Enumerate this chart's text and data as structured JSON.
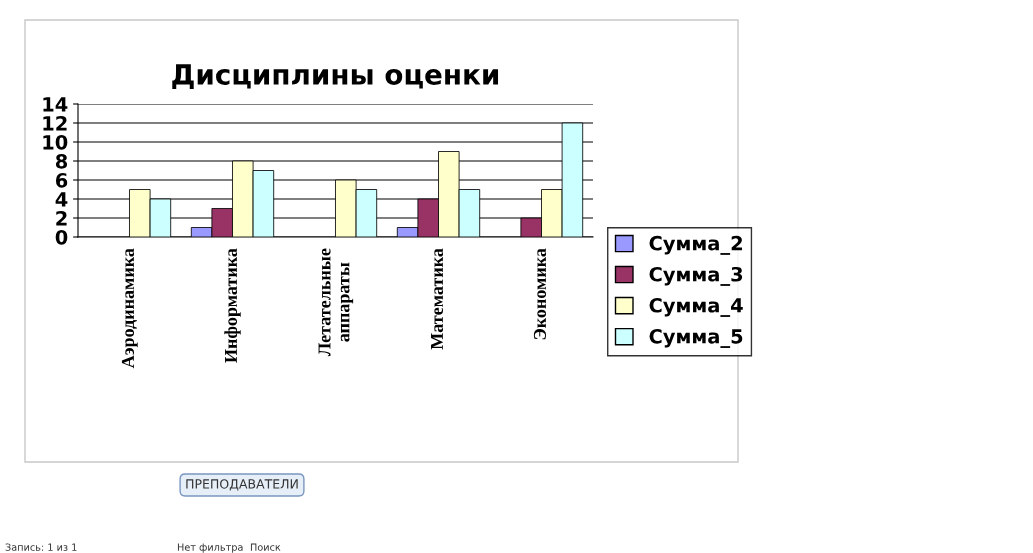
{
  "chart_data": {
    "type": "bar",
    "title": "Дисциплины оценки",
    "categories": [
      "Аэродинамика",
      "Информатика",
      "Летательные\nаппараты",
      "Математика",
      "Экономика"
    ],
    "series": [
      {
        "name": "Сумма_2",
        "color": "#9999ff",
        "values": [
          null,
          1,
          null,
          1,
          null
        ]
      },
      {
        "name": "Сумма_3",
        "color": "#993366",
        "values": [
          null,
          3,
          null,
          4,
          2
        ]
      },
      {
        "name": "Сумма_4",
        "color": "#ffffcc",
        "values": [
          5,
          8,
          6,
          9,
          5
        ]
      },
      {
        "name": "Сумма_5",
        "color": "#ccffff",
        "values": [
          4,
          7,
          5,
          5,
          12
        ]
      }
    ],
    "ylim": [
      0,
      14
    ],
    "yticks": [
      0,
      2,
      4,
      6,
      8,
      10,
      12,
      14
    ],
    "grid": "y",
    "legend": "right",
    "annotations": [
      "ПРЕПОДАВАТЕЛИ",
      "Запись: 1 из 1",
      "Нет фильтра",
      "Поиск"
    ]
  }
}
